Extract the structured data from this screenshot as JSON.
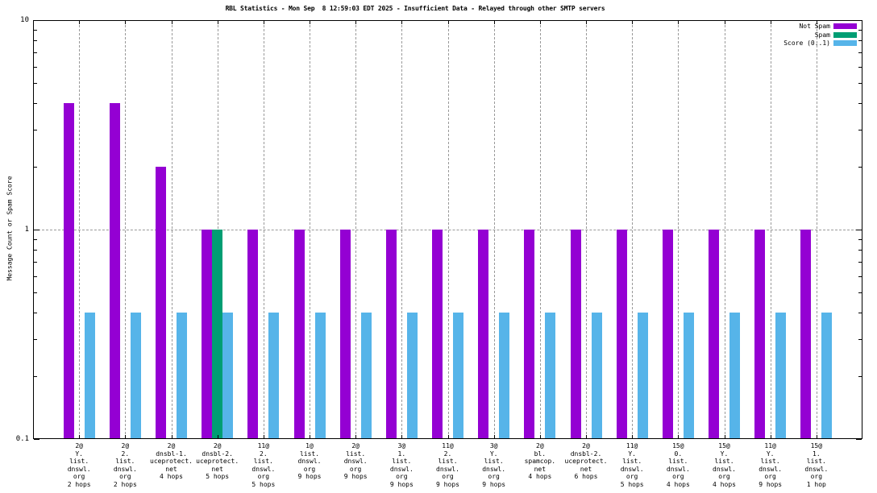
{
  "chart_data": {
    "type": "bar",
    "title": "RBL Statistics - Mon Sep  8 12:59:03 EDT 2025 - Insufficient Data - Relayed through other SMTP servers",
    "ylabel": "Message Count or Spam Score",
    "yscale": "log",
    "ylim": [
      0.1,
      10
    ],
    "ytick_labels": [
      "0.1",
      "1",
      "10"
    ],
    "ytick_values": [
      0.1,
      1,
      10
    ],
    "grid": true,
    "legend_position": "top-right-inside",
    "categories": [
      [
        "2@",
        "Y.",
        "list.",
        "dnswl.",
        "org",
        "2 hops"
      ],
      [
        "2@",
        "2.",
        "list.",
        "dnswl.",
        "org",
        "2 hops"
      ],
      [
        "2@",
        "dnsbl-1.",
        "uceprotect.",
        "net",
        "4 hops"
      ],
      [
        "2@",
        "dnsbl-2.",
        "uceprotect.",
        "net",
        "5 hops"
      ],
      [
        "11@",
        "2.",
        "list.",
        "dnswl.",
        "org",
        "5 hops"
      ],
      [
        "1@",
        "list.",
        "dnswl.",
        "org",
        "9 hops"
      ],
      [
        "2@",
        "list.",
        "dnswl.",
        "org",
        "9 hops"
      ],
      [
        "3@",
        "1.",
        "list.",
        "dnswl.",
        "org",
        "9 hops"
      ],
      [
        "11@",
        "2.",
        "list.",
        "dnswl.",
        "org",
        "9 hops"
      ],
      [
        "3@",
        "Y.",
        "list.",
        "dnswl.",
        "org",
        "9 hops"
      ],
      [
        "2@",
        "bl.",
        "spamcop.",
        "net",
        "4 hops"
      ],
      [
        "2@",
        "dnsbl-2.",
        "uceprotect.",
        "net",
        "6 hops"
      ],
      [
        "11@",
        "Y.",
        "list.",
        "dnswl.",
        "org",
        "5 hops"
      ],
      [
        "15@",
        "0.",
        "list.",
        "dnswl.",
        "org",
        "4 hops"
      ],
      [
        "15@",
        "Y.",
        "list.",
        "dnswl.",
        "org",
        "4 hops"
      ],
      [
        "11@",
        "Y.",
        "list.",
        "dnswl.",
        "org",
        "9 hops"
      ],
      [
        "15@",
        "1.",
        "list.",
        "dnswl.",
        "org",
        "1 hop"
      ]
    ],
    "series": [
      {
        "name": "Not Spam",
        "color": "#9400d3",
        "values": [
          4,
          4,
          2,
          1,
          1,
          1,
          1,
          1,
          1,
          1,
          1,
          1,
          1,
          1,
          1,
          1,
          1
        ]
      },
      {
        "name": "Spam",
        "color": "#009e73",
        "values": [
          0,
          0,
          0,
          1,
          0,
          0,
          0,
          0,
          0,
          0,
          0,
          0,
          0,
          0,
          0,
          0,
          0
        ]
      },
      {
        "name": "Score (0..1)",
        "color": "#56b4e9",
        "values": [
          0.4,
          0.4,
          0.4,
          0.4,
          0.4,
          0.4,
          0.4,
          0.4,
          0.4,
          0.4,
          0.4,
          0.4,
          0.4,
          0.4,
          0.4,
          0.4,
          0.4
        ]
      }
    ],
    "grid_color": "#9a9a9a",
    "axis_color": "#000000",
    "background_color": "#ffffff"
  }
}
